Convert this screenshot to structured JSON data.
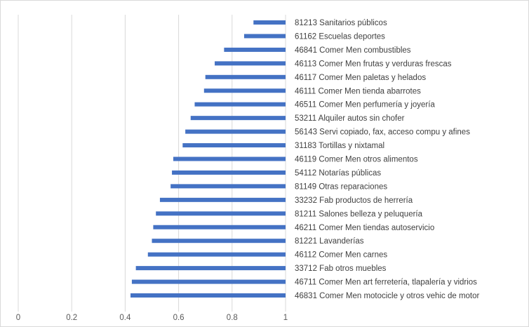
{
  "chart_data": {
    "type": "bar",
    "orientation": "horizontal",
    "bar_anchor": "right",
    "categories": [
      "81213 Sanitarios públicos",
      "61162 Escuelas deportes",
      "46841 Comer Men combustibles",
      "46113 Comer Men frutas y verduras frescas",
      "46117 Comer Men paletas y helados",
      "46111 Comer Men tienda abarrotes",
      "46511 Comer Men perfumería y joyería",
      "53211 Alquiler autos sin chofer",
      "56143 Servi copiado, fax, acceso compu y afines",
      "31183 Tortillas y nixtamal",
      "46119 Comer Men otros alimentos",
      "54112 Notarías públicas",
      "81149 Otras reparaciones",
      "33232 Fab productos de herrería",
      "81211 Salones belleza y peluquería",
      "46211 Comer Men tiendas autoservicio",
      "81221 Lavanderías",
      "46112 Comer Men carnes",
      "33712 Fab otros muebles",
      "46711 Comer Men art ferretería, tlapalería y vidrios",
      "46831 Comer Men motocicle y otros vehic de motor"
    ],
    "values": [
      0.88,
      0.845,
      0.77,
      0.735,
      0.7,
      0.695,
      0.66,
      0.645,
      0.625,
      0.615,
      0.58,
      0.575,
      0.57,
      0.53,
      0.515,
      0.505,
      0.5,
      0.485,
      0.44,
      0.425,
      0.42
    ],
    "xlim": [
      0,
      1
    ],
    "xticks": [
      "0",
      "0.2",
      "0.4",
      "0.6",
      "0.8",
      "1"
    ],
    "grid": true,
    "legend": "none",
    "bar_color": "#4472c4",
    "grid_color": "#d9d9d9",
    "title": "",
    "xlabel": "",
    "ylabel": ""
  }
}
